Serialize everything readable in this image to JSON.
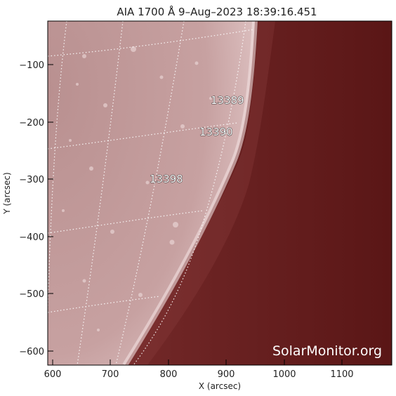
{
  "title": "AIA 1700 Å  9–Aug–2023 18:39:16.451",
  "x_axis": {
    "label": "X (arcsec)",
    "ticks": [
      "600",
      "700",
      "800",
      "900",
      "1000",
      "1100"
    ],
    "range": [
      590,
      1185
    ]
  },
  "y_axis": {
    "label": "Y (arcsec)",
    "ticks": [
      "−100",
      "−200",
      "−300",
      "−400",
      "−500",
      "−600"
    ],
    "range": [
      -625,
      -35
    ]
  },
  "regions": [
    {
      "number": "13389",
      "x": 930,
      "y": -165
    },
    {
      "number": "13390",
      "x": 915,
      "y": -218
    },
    {
      "number": "13398",
      "x": 800,
      "y": -302
    }
  ],
  "watermark": "SolarMonitor.org",
  "colors": {
    "disk": "#c9a5a5",
    "off_limb": "#6e2424",
    "grid": "#ffffff"
  }
}
